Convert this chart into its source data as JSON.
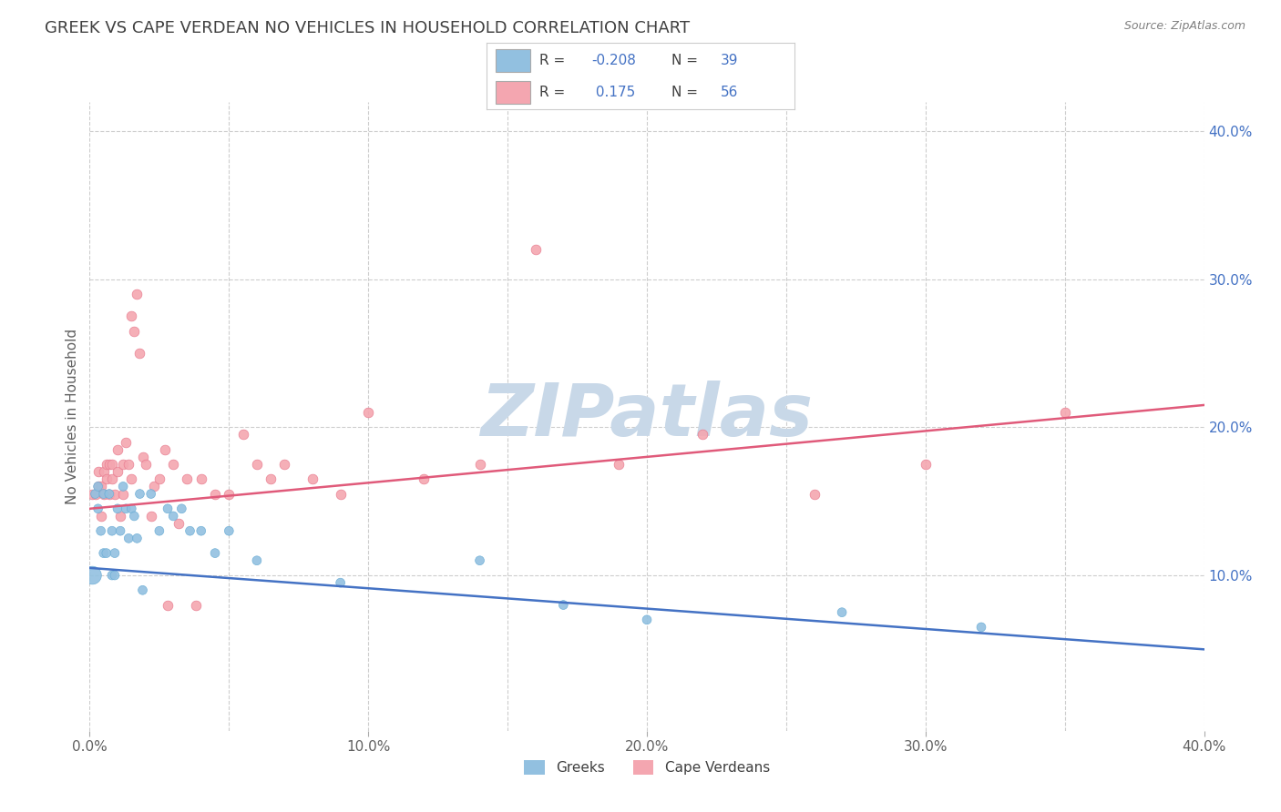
{
  "title": "GREEK VS CAPE VERDEAN NO VEHICLES IN HOUSEHOLD CORRELATION CHART",
  "source_text": "Source: ZipAtlas.com",
  "ylabel": "No Vehicles in Household",
  "xlim": [
    0.0,
    0.4
  ],
  "ylim": [
    -0.005,
    0.42
  ],
  "xtick_labels": [
    "0.0%",
    "",
    "10.0%",
    "",
    "20.0%",
    "",
    "30.0%",
    "",
    "40.0%"
  ],
  "xtick_vals": [
    0.0,
    0.05,
    0.1,
    0.15,
    0.2,
    0.25,
    0.3,
    0.35,
    0.4
  ],
  "ytick_labels_right": [
    "10.0%",
    "20.0%",
    "30.0%",
    "40.0%"
  ],
  "ytick_vals": [
    0.1,
    0.2,
    0.3,
    0.4
  ],
  "greek_color": "#92c0e0",
  "greek_edge_color": "#6aadd5",
  "cape_color": "#f4a6b0",
  "cape_edge_color": "#e87a8e",
  "greek_line_color": "#4472c4",
  "cape_line_color": "#e05a7a",
  "title_color": "#404040",
  "source_color": "#808080",
  "ylabel_color": "#606060",
  "tick_color_right": "#4472c4",
  "tick_color_bottom": "#606060",
  "legend_r_color": "#4472c4",
  "legend_label_color": "#404040",
  "watermark_color": "#c8d8e8",
  "background_color": "#ffffff",
  "grid_color": "#c8c8c8",
  "legend_greek_label": "Greeks",
  "legend_cape_label": "Cape Verdeans",
  "greek_R": -0.208,
  "greek_N": 39,
  "cape_R": 0.175,
  "cape_N": 56,
  "greek_scatter_x": [
    0.001,
    0.002,
    0.003,
    0.003,
    0.004,
    0.005,
    0.005,
    0.006,
    0.007,
    0.008,
    0.008,
    0.009,
    0.009,
    0.01,
    0.011,
    0.012,
    0.013,
    0.014,
    0.015,
    0.016,
    0.017,
    0.018,
    0.019,
    0.022,
    0.025,
    0.028,
    0.03,
    0.033,
    0.036,
    0.04,
    0.045,
    0.05,
    0.06,
    0.09,
    0.14,
    0.17,
    0.2,
    0.27,
    0.32
  ],
  "greek_scatter_y": [
    0.1,
    0.155,
    0.16,
    0.145,
    0.13,
    0.155,
    0.115,
    0.115,
    0.155,
    0.13,
    0.1,
    0.1,
    0.115,
    0.145,
    0.13,
    0.16,
    0.145,
    0.125,
    0.145,
    0.14,
    0.125,
    0.155,
    0.09,
    0.155,
    0.13,
    0.145,
    0.14,
    0.145,
    0.13,
    0.13,
    0.115,
    0.13,
    0.11,
    0.095,
    0.11,
    0.08,
    0.07,
    0.075,
    0.065
  ],
  "greek_scatter_sizes": [
    200,
    50,
    50,
    50,
    50,
    50,
    50,
    50,
    50,
    50,
    50,
    50,
    50,
    50,
    50,
    50,
    50,
    50,
    50,
    50,
    50,
    50,
    50,
    50,
    50,
    50,
    50,
    50,
    50,
    50,
    50,
    50,
    50,
    50,
    50,
    50,
    50,
    50,
    50
  ],
  "cape_scatter_x": [
    0.001,
    0.002,
    0.003,
    0.003,
    0.004,
    0.004,
    0.005,
    0.005,
    0.006,
    0.006,
    0.007,
    0.007,
    0.008,
    0.008,
    0.009,
    0.01,
    0.01,
    0.011,
    0.012,
    0.012,
    0.013,
    0.014,
    0.015,
    0.015,
    0.016,
    0.017,
    0.018,
    0.019,
    0.02,
    0.022,
    0.023,
    0.025,
    0.027,
    0.028,
    0.03,
    0.032,
    0.035,
    0.038,
    0.04,
    0.045,
    0.05,
    0.055,
    0.06,
    0.065,
    0.07,
    0.08,
    0.09,
    0.1,
    0.12,
    0.14,
    0.16,
    0.19,
    0.22,
    0.26,
    0.3,
    0.35
  ],
  "cape_scatter_y": [
    0.155,
    0.155,
    0.17,
    0.16,
    0.16,
    0.14,
    0.155,
    0.17,
    0.165,
    0.175,
    0.155,
    0.175,
    0.175,
    0.165,
    0.155,
    0.17,
    0.185,
    0.14,
    0.175,
    0.155,
    0.19,
    0.175,
    0.165,
    0.275,
    0.265,
    0.29,
    0.25,
    0.18,
    0.175,
    0.14,
    0.16,
    0.165,
    0.185,
    0.08,
    0.175,
    0.135,
    0.165,
    0.08,
    0.165,
    0.155,
    0.155,
    0.195,
    0.175,
    0.165,
    0.175,
    0.165,
    0.155,
    0.21,
    0.165,
    0.175,
    0.32,
    0.175,
    0.195,
    0.155,
    0.175,
    0.21
  ],
  "greek_trend_x": [
    0.0,
    0.4
  ],
  "greek_trend_y": [
    0.105,
    0.05
  ],
  "cape_trend_x": [
    0.0,
    0.4
  ],
  "cape_trend_y": [
    0.145,
    0.215
  ]
}
